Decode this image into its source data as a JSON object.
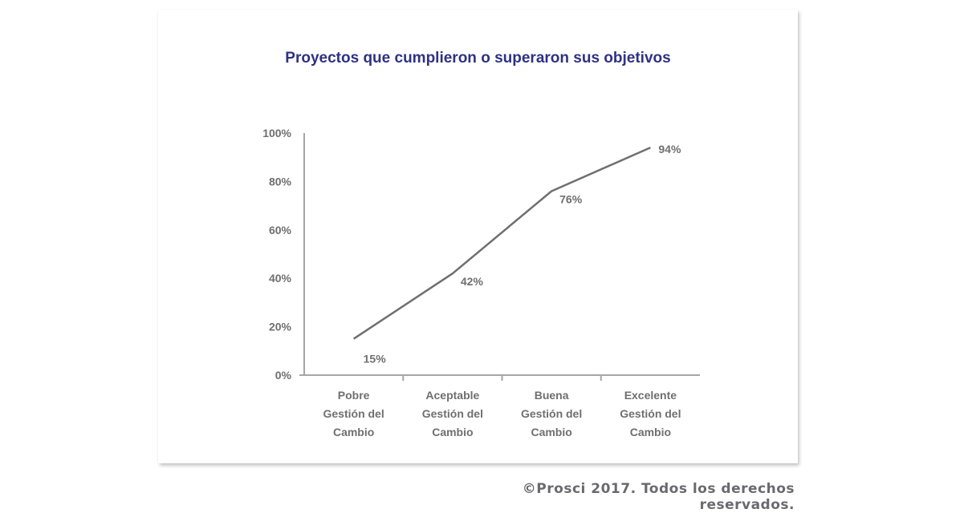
{
  "chart_data": {
    "type": "line",
    "title": "Proyectos que cumplieron o superaron sus objetivos",
    "categories": [
      [
        "Pobre",
        "Gestión del",
        "Cambio"
      ],
      [
        "Aceptable",
        "Gestión del",
        "Cambio"
      ],
      [
        "Buena",
        "Gestión del",
        "Cambio"
      ],
      [
        "Excelente",
        "Gestión del",
        "Cambio"
      ]
    ],
    "series": [
      {
        "name": "Proyectos",
        "values": [
          15,
          42,
          76,
          94
        ],
        "color": "#6f6f6f"
      }
    ],
    "data_labels": [
      "15%",
      "42%",
      "76%",
      "94%"
    ],
    "y_ticks": [
      0,
      20,
      40,
      60,
      80,
      100
    ],
    "y_tick_labels": [
      "0%",
      "20%",
      "40%",
      "60%",
      "80%",
      "100%"
    ],
    "ylim": [
      0,
      100
    ],
    "xlabel": "",
    "ylabel": "",
    "grid": false,
    "legend": "none",
    "axis_color": "#a6a6a6",
    "title_color": "#2e3283"
  },
  "footer": {
    "copyright": "©Prosci 2017. Todos los derechos reservados."
  }
}
